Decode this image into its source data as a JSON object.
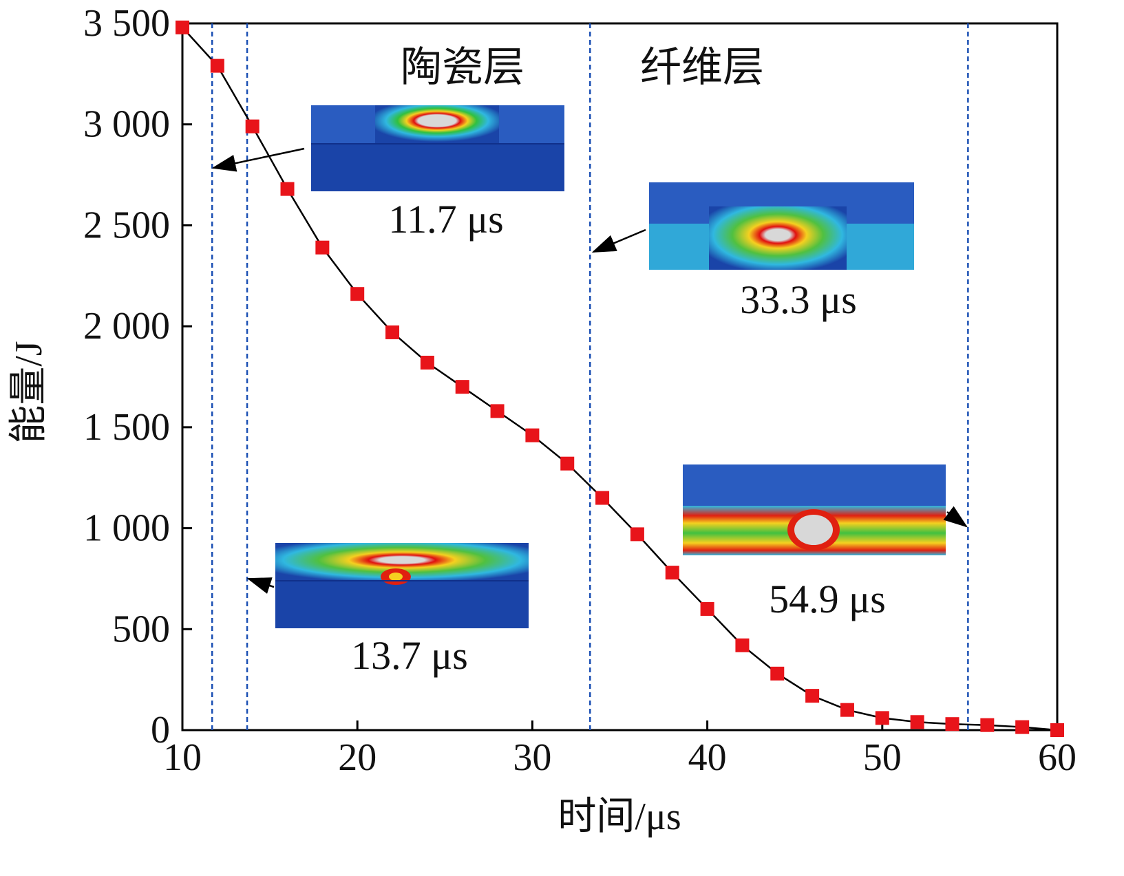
{
  "colors": {
    "axis": "#000000",
    "line": "#000000",
    "marker": "#e8141a",
    "divider": "#1a4fb3",
    "sim_bg": "#1a44a8"
  },
  "chart_data": {
    "type": "line",
    "xlabel": "时间/μs",
    "ylabel": "能量/J",
    "xlim": [
      10,
      60
    ],
    "ylim": [
      0,
      3500
    ],
    "xticks": [
      "10",
      "20",
      "30",
      "40",
      "50",
      "60"
    ],
    "yticks": [
      "0",
      "500",
      "1 000",
      "1 500",
      "2 000",
      "2 500",
      "3 000",
      "3 500"
    ],
    "series": [
      {
        "marker": "square",
        "x": [
          10,
          12,
          14,
          16,
          18,
          20,
          22,
          24,
          26,
          28,
          30,
          32,
          34,
          36,
          38,
          40,
          42,
          44,
          46,
          48,
          50,
          52,
          54,
          56,
          58,
          60
        ],
        "y": [
          3480,
          3290,
          2990,
          2680,
          2390,
          2160,
          1970,
          1820,
          1700,
          1580,
          1460,
          1320,
          1150,
          970,
          780,
          600,
          420,
          280,
          170,
          100,
          60,
          40,
          30,
          25,
          15,
          0
        ]
      }
    ],
    "vertical_lines": [
      11.7,
      13.7,
      33.3,
      54.9
    ],
    "regions": [
      {
        "label": "陶瓷层",
        "x_center": 25.5
      },
      {
        "label": "纤维层",
        "x_center": 39.5
      }
    ],
    "annotations": [
      {
        "label": "11.7 μs",
        "points_to_x": 11.7
      },
      {
        "label": "13.7 μs",
        "points_to_x": 13.7
      },
      {
        "label": "33.3 μs",
        "points_to_x": 33.3
      },
      {
        "label": "54.9 μs",
        "points_to_x": 54.9
      }
    ],
    "grid": false
  }
}
